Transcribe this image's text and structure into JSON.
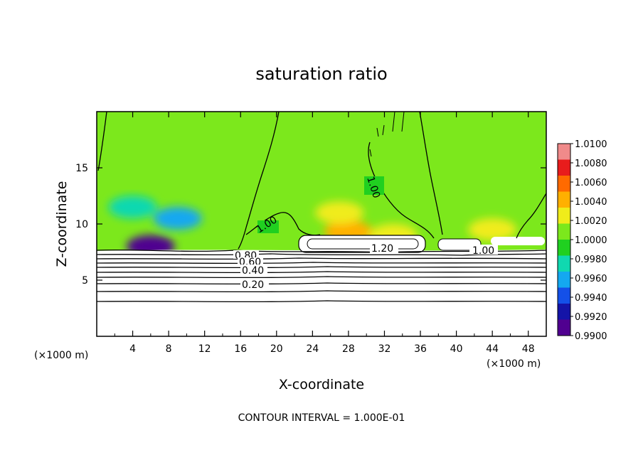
{
  "chart_data": {
    "type": "heatmap",
    "title": "saturation ratio",
    "xlabel": "X-coordinate",
    "ylabel": "Z-coordinate",
    "x_unit_left": "(×1000 m)",
    "x_unit_right": "(×1000 m)",
    "xlim": [
      0,
      50
    ],
    "ylim": [
      0,
      20
    ],
    "x_ticks": [
      "4",
      "8",
      "12",
      "16",
      "20",
      "24",
      "28",
      "32",
      "36",
      "40",
      "44",
      "48"
    ],
    "y_ticks": [
      "5",
      "10",
      "15"
    ],
    "colorbar": {
      "min": 0.99,
      "max": 1.01,
      "labels": [
        "1.0100",
        "1.0080",
        "1.0060",
        "1.0040",
        "1.0020",
        "1.0000",
        "0.9980",
        "0.9960",
        "0.9940",
        "0.9920",
        "0.9900"
      ],
      "colors": [
        "#f08a8a",
        "#e81c1c",
        "#ff6a00",
        "#ffb000",
        "#f0ec1a",
        "#7ce81c",
        "#20d020",
        "#10d8b0",
        "#14a8f0",
        "#1450e8",
        "#1414a8",
        "#500090"
      ]
    },
    "contour_labels": [
      "1.00",
      "1.00",
      "1.20",
      "1.00",
      "0.80",
      "0.60",
      "0.40",
      "0.20"
    ],
    "field": {
      "base_value": 1.0002,
      "cloud_base_z": 7.6,
      "features": [
        {
          "x": 6,
          "z": 8.0,
          "value": 0.9905
        },
        {
          "x": 9,
          "z": 10.5,
          "value": 0.9962
        },
        {
          "x": 4,
          "z": 11.5,
          "value": 0.9975
        },
        {
          "x": 28,
          "z": 9.3,
          "value": 1.0045
        },
        {
          "x": 27,
          "z": 11,
          "value": 1.0022
        },
        {
          "x": 44,
          "z": 9.5,
          "value": 1.0025
        },
        {
          "x": 33,
          "z": 9,
          "value": 1.003
        }
      ]
    }
  },
  "footer": {
    "contour_interval": "CONTOUR INTERVAL = 1.000E-01"
  }
}
